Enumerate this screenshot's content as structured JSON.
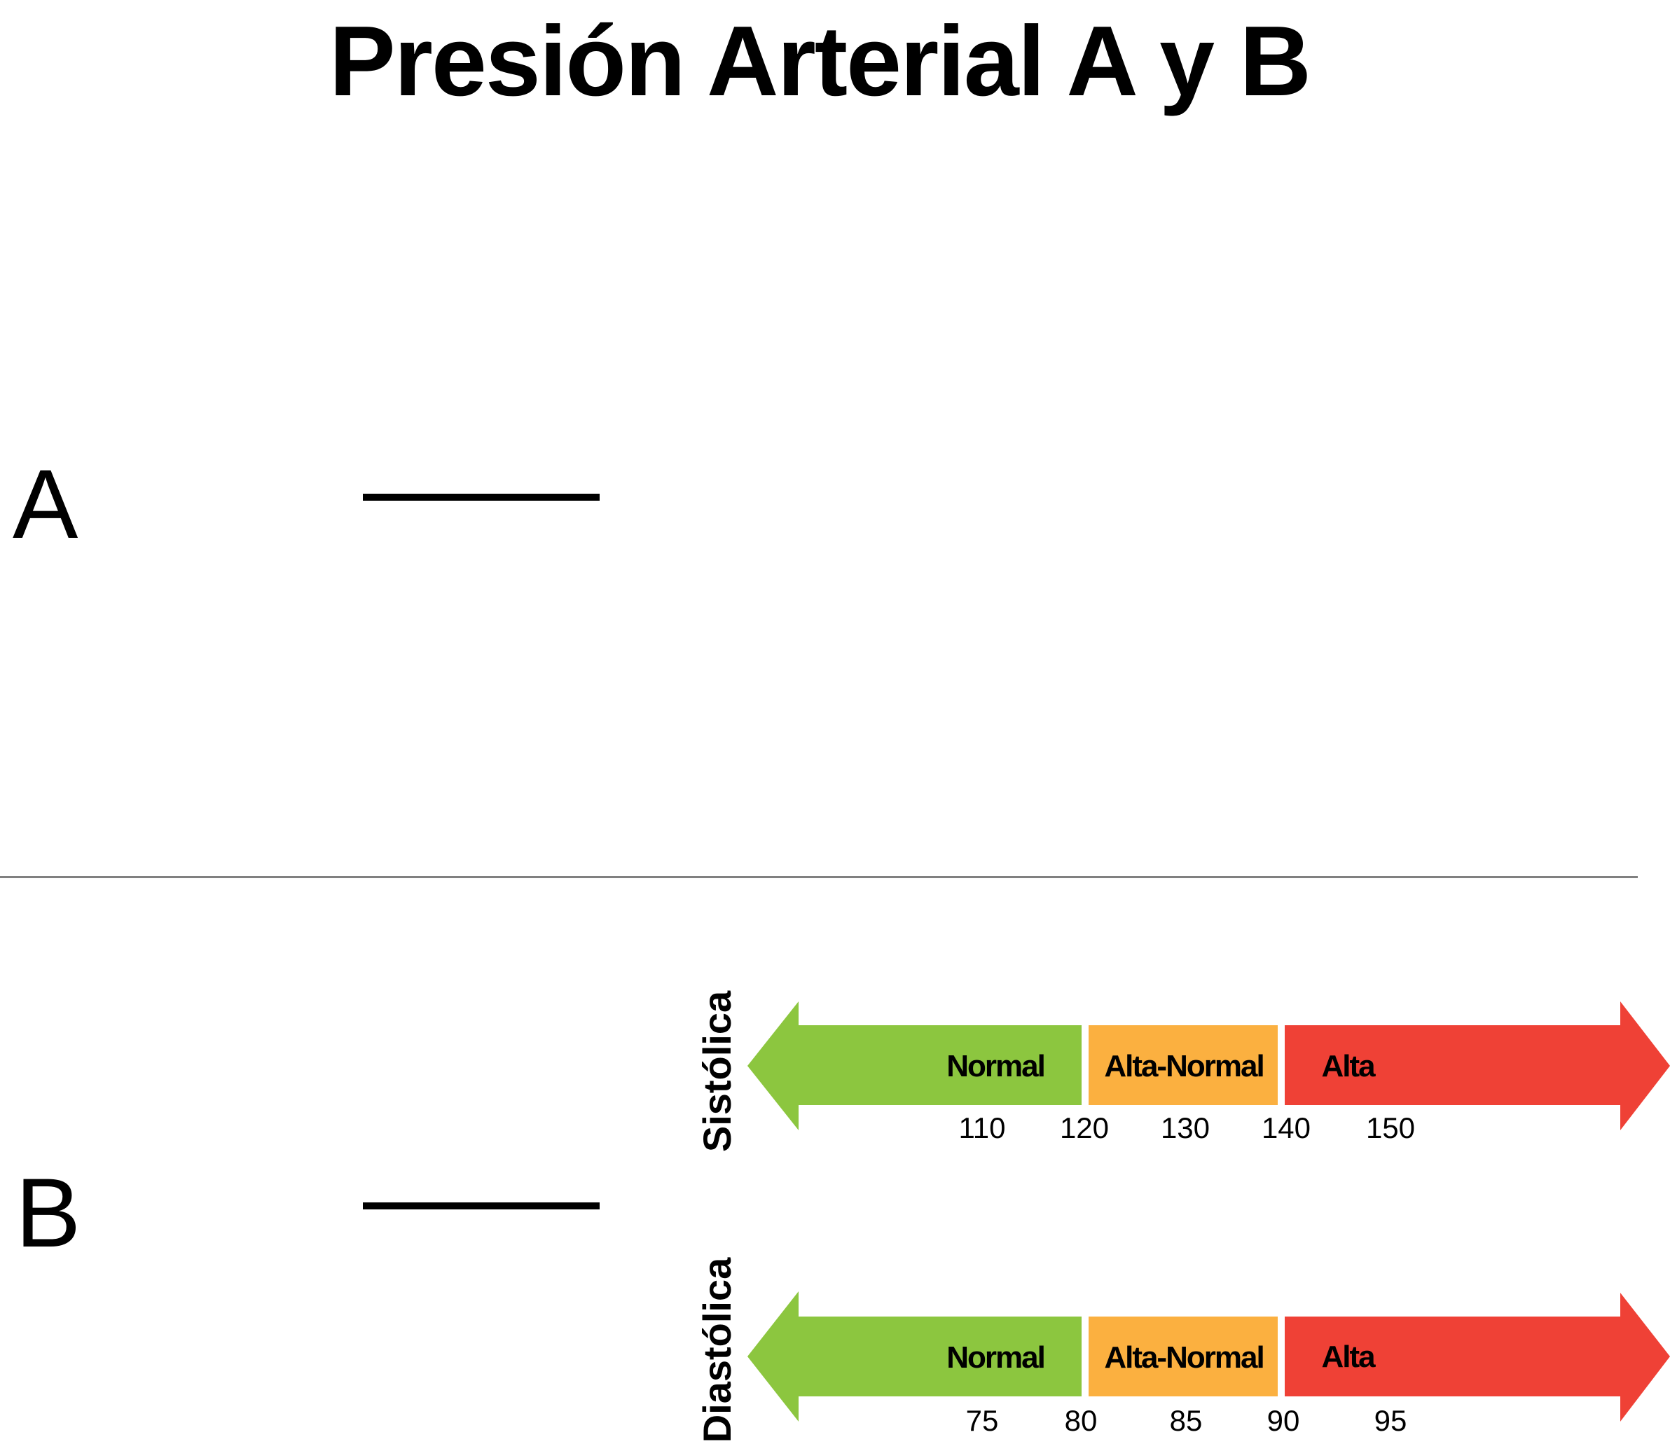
{
  "title": "Presión Arterial A y B",
  "parts": [
    {
      "id": "A",
      "label": "A"
    },
    {
      "id": "B",
      "label": "B"
    }
  ],
  "scales": [
    {
      "name": "Sistólica",
      "segments": [
        {
          "label": "Normal",
          "color": "#8CC63F"
        },
        {
          "label": "Alta-Normal",
          "color": "#FBB040"
        },
        {
          "label": "Alta",
          "color": "#EF4136"
        }
      ],
      "ticks": [
        "110",
        "120",
        "130",
        "140",
        "150"
      ]
    },
    {
      "name": "Diastólica",
      "segments": [
        {
          "label": "Normal",
          "color": "#8CC63F"
        },
        {
          "label": "Alta-Normal",
          "color": "#FBB040"
        },
        {
          "label": "Alta",
          "color": "#EF4136"
        }
      ],
      "ticks": [
        "75",
        "80",
        "85",
        "90",
        "95"
      ]
    }
  ]
}
